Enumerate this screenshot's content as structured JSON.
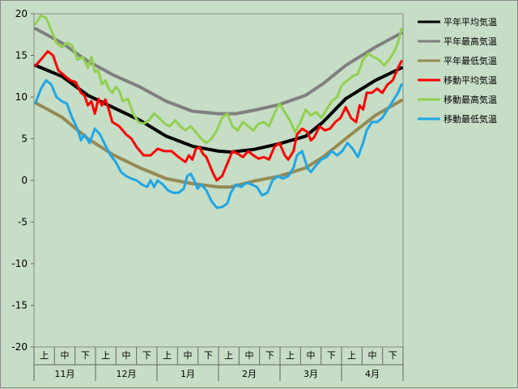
{
  "chart_data": {
    "type": "line",
    "title": "",
    "xlabel": "",
    "ylabel": "",
    "ylim": [
      -20,
      20
    ],
    "yticks": [
      20,
      15,
      10,
      5,
      0,
      -5,
      -10,
      -15,
      -20
    ],
    "months": [
      "11月",
      "12月",
      "1月",
      "2月",
      "3月",
      "4月"
    ],
    "periods": [
      "上",
      "中",
      "下"
    ],
    "n_points": 180,
    "series": [
      {
        "name": "平年平均気温",
        "color": "#000000",
        "width": 4,
        "kp": [
          [
            0,
            13.8
          ],
          [
            15,
            12.5
          ],
          [
            30,
            10.2
          ],
          [
            45,
            8.7
          ],
          [
            60,
            7.2
          ],
          [
            75,
            5.3
          ],
          [
            90,
            4.1
          ],
          [
            105,
            3.5
          ],
          [
            112,
            3.4
          ],
          [
            125,
            3.7
          ],
          [
            140,
            4.4
          ],
          [
            155,
            5.3
          ],
          [
            165,
            7.0
          ],
          [
            178,
            9.8
          ],
          [
            195,
            12.0
          ],
          [
            210,
            13.5
          ]
        ]
      },
      {
        "name": "平年最高気温",
        "color": "#808080",
        "width": 4,
        "kp": [
          [
            0,
            18.2
          ],
          [
            15,
            16.5
          ],
          [
            30,
            14.3
          ],
          [
            45,
            12.6
          ],
          [
            60,
            11.2
          ],
          [
            75,
            9.5
          ],
          [
            90,
            8.3
          ],
          [
            105,
            8.0
          ],
          [
            115,
            8.0
          ],
          [
            125,
            8.4
          ],
          [
            140,
            9.1
          ],
          [
            155,
            10.2
          ],
          [
            165,
            11.6
          ],
          [
            178,
            13.8
          ],
          [
            195,
            16.0
          ],
          [
            210,
            17.7
          ]
        ]
      },
      {
        "name": "平年最低気温",
        "color": "#948a54",
        "width": 4,
        "kp": [
          [
            0,
            9.3
          ],
          [
            15,
            7.6
          ],
          [
            30,
            5.0
          ],
          [
            45,
            3.0
          ],
          [
            60,
            1.5
          ],
          [
            75,
            0.2
          ],
          [
            90,
            -0.4
          ],
          [
            105,
            -0.8
          ],
          [
            112,
            -0.8
          ],
          [
            125,
            -0.1
          ],
          [
            140,
            0.5
          ],
          [
            155,
            1.5
          ],
          [
            165,
            2.8
          ],
          [
            178,
            5.0
          ],
          [
            195,
            7.8
          ],
          [
            210,
            9.6
          ]
        ]
      },
      {
        "name": "移動平均気温",
        "color": "#ff0000",
        "width": 3,
        "kp": [
          [
            0,
            13.8
          ],
          [
            3,
            14.5
          ],
          [
            7,
            15.5
          ],
          [
            10,
            15.0
          ],
          [
            13,
            13.2
          ],
          [
            17,
            12.5
          ],
          [
            20,
            12.0
          ],
          [
            23,
            11.8
          ],
          [
            26,
            10.5
          ],
          [
            28,
            10.2
          ],
          [
            30,
            9.0
          ],
          [
            32,
            9.5
          ],
          [
            34,
            8.0
          ],
          [
            36,
            9.8
          ],
          [
            38,
            9.0
          ],
          [
            40,
            9.7
          ],
          [
            42,
            8.5
          ],
          [
            44,
            7.0
          ],
          [
            48,
            6.5
          ],
          [
            52,
            5.5
          ],
          [
            55,
            5.0
          ],
          [
            58,
            4.0
          ],
          [
            62,
            3.0
          ],
          [
            66,
            3.0
          ],
          [
            70,
            3.8
          ],
          [
            74,
            3.5
          ],
          [
            78,
            3.5
          ],
          [
            82,
            2.8
          ],
          [
            86,
            2.2
          ],
          [
            88,
            3.0
          ],
          [
            90,
            2.5
          ],
          [
            92,
            3.8
          ],
          [
            94,
            4.0
          ],
          [
            96,
            3.2
          ],
          [
            98,
            2.8
          ],
          [
            100,
            1.8
          ],
          [
            102,
            0.8
          ],
          [
            104,
            0.0
          ],
          [
            107,
            0.5
          ],
          [
            110,
            2.0
          ],
          [
            113,
            3.5
          ],
          [
            116,
            3.2
          ],
          [
            119,
            2.8
          ],
          [
            122,
            3.5
          ],
          [
            125,
            3.0
          ],
          [
            128,
            2.6
          ],
          [
            131,
            2.8
          ],
          [
            134,
            2.5
          ],
          [
            137,
            4.0
          ],
          [
            140,
            4.5
          ],
          [
            143,
            3.0
          ],
          [
            145,
            2.5
          ],
          [
            148,
            3.5
          ],
          [
            150,
            5.5
          ],
          [
            153,
            6.2
          ],
          [
            156,
            5.8
          ],
          [
            158,
            4.8
          ],
          [
            160,
            5.2
          ],
          [
            163,
            6.5
          ],
          [
            166,
            6.0
          ],
          [
            169,
            6.2
          ],
          [
            172,
            7.0
          ],
          [
            175,
            7.5
          ],
          [
            178,
            8.8
          ],
          [
            181,
            7.5
          ],
          [
            184,
            7.0
          ],
          [
            186,
            9.0
          ],
          [
            188,
            8.5
          ],
          [
            190,
            10.5
          ],
          [
            193,
            10.5
          ],
          [
            196,
            11.0
          ],
          [
            199,
            10.5
          ],
          [
            202,
            11.5
          ],
          [
            205,
            12.0
          ],
          [
            208,
            13.5
          ],
          [
            210,
            14.3
          ]
        ]
      },
      {
        "name": "移動最高気温",
        "color": "#92d050",
        "width": 3,
        "kp": [
          [
            0,
            18.8
          ],
          [
            3,
            19.8
          ],
          [
            6,
            19.5
          ],
          [
            9,
            18.0
          ],
          [
            12,
            16.5
          ],
          [
            15,
            16.0
          ],
          [
            18,
            16.5
          ],
          [
            21,
            16.2
          ],
          [
            24,
            14.5
          ],
          [
            27,
            14.8
          ],
          [
            30,
            13.5
          ],
          [
            32,
            14.8
          ],
          [
            34,
            13.0
          ],
          [
            36,
            13.2
          ],
          [
            38,
            11.5
          ],
          [
            40,
            12.0
          ],
          [
            42,
            11.0
          ],
          [
            44,
            10.5
          ],
          [
            46,
            11.2
          ],
          [
            48,
            10.8
          ],
          [
            50,
            9.5
          ],
          [
            53,
            9.8
          ],
          [
            56,
            8.0
          ],
          [
            59,
            7.0
          ],
          [
            62,
            6.8
          ],
          [
            65,
            7.2
          ],
          [
            68,
            8.0
          ],
          [
            71,
            7.5
          ],
          [
            74,
            6.8
          ],
          [
            77,
            6.5
          ],
          [
            80,
            7.2
          ],
          [
            83,
            6.5
          ],
          [
            86,
            6.0
          ],
          [
            89,
            6.5
          ],
          [
            92,
            5.8
          ],
          [
            95,
            5.0
          ],
          [
            98,
            4.5
          ],
          [
            101,
            5.0
          ],
          [
            104,
            6.0
          ],
          [
            107,
            7.5
          ],
          [
            110,
            8.0
          ],
          [
            113,
            6.5
          ],
          [
            116,
            6.0
          ],
          [
            119,
            7.0
          ],
          [
            122,
            6.5
          ],
          [
            125,
            6.0
          ],
          [
            128,
            6.8
          ],
          [
            131,
            7.0
          ],
          [
            134,
            6.5
          ],
          [
            137,
            8.0
          ],
          [
            140,
            9.2
          ],
          [
            143,
            8.2
          ],
          [
            146,
            7.2
          ],
          [
            149,
            5.8
          ],
          [
            152,
            7.0
          ],
          [
            155,
            8.5
          ],
          [
            158,
            7.8
          ],
          [
            161,
            8.2
          ],
          [
            164,
            7.5
          ],
          [
            167,
            8.5
          ],
          [
            170,
            9.5
          ],
          [
            173,
            10.0
          ],
          [
            176,
            11.5
          ],
          [
            179,
            12.0
          ],
          [
            182,
            12.5
          ],
          [
            185,
            12.8
          ],
          [
            188,
            14.5
          ],
          [
            191,
            15.2
          ],
          [
            194,
            14.8
          ],
          [
            197,
            14.5
          ],
          [
            200,
            13.8
          ],
          [
            203,
            14.5
          ],
          [
            206,
            15.5
          ],
          [
            208,
            16.5
          ],
          [
            210,
            18.2
          ]
        ]
      },
      {
        "name": "移動最低気温",
        "color": "#1fa6e6",
        "width": 3,
        "kp": [
          [
            0,
            9.3
          ],
          [
            3,
            11.0
          ],
          [
            6,
            12.0
          ],
          [
            9,
            11.5
          ],
          [
            12,
            10.0
          ],
          [
            15,
            9.5
          ],
          [
            18,
            9.2
          ],
          [
            21,
            7.5
          ],
          [
            24,
            6.2
          ],
          [
            26,
            4.8
          ],
          [
            28,
            5.5
          ],
          [
            31,
            4.5
          ],
          [
            34,
            6.2
          ],
          [
            37,
            5.5
          ],
          [
            40,
            4.2
          ],
          [
            43,
            3.0
          ],
          [
            46,
            2.2
          ],
          [
            49,
            1.0
          ],
          [
            52,
            0.5
          ],
          [
            55,
            0.2
          ],
          [
            58,
            0.0
          ],
          [
            61,
            -0.5
          ],
          [
            64,
            -0.8
          ],
          [
            66,
            0.0
          ],
          [
            68,
            -0.8
          ],
          [
            70,
            0.0
          ],
          [
            73,
            -0.5
          ],
          [
            76,
            -1.2
          ],
          [
            79,
            -1.5
          ],
          [
            82,
            -1.5
          ],
          [
            85,
            -1.0
          ],
          [
            87,
            0.5
          ],
          [
            89,
            0.8
          ],
          [
            91,
            0.0
          ],
          [
            93,
            -1.0
          ],
          [
            95,
            -0.5
          ],
          [
            98,
            -1.2
          ],
          [
            101,
            -2.5
          ],
          [
            104,
            -3.3
          ],
          [
            107,
            -3.2
          ],
          [
            110,
            -2.8
          ],
          [
            112,
            -1.5
          ],
          [
            115,
            -0.5
          ],
          [
            118,
            -0.8
          ],
          [
            121,
            -0.3
          ],
          [
            124,
            -0.5
          ],
          [
            127,
            -0.8
          ],
          [
            130,
            -1.8
          ],
          [
            133,
            -1.5
          ],
          [
            136,
            0.0
          ],
          [
            139,
            0.5
          ],
          [
            142,
            0.2
          ],
          [
            145,
            0.5
          ],
          [
            148,
            1.5
          ],
          [
            150,
            3.0
          ],
          [
            153,
            3.5
          ],
          [
            156,
            1.5
          ],
          [
            158,
            1.0
          ],
          [
            161,
            1.8
          ],
          [
            164,
            2.5
          ],
          [
            167,
            2.8
          ],
          [
            170,
            3.5
          ],
          [
            173,
            3.0
          ],
          [
            176,
            3.5
          ],
          [
            179,
            4.5
          ],
          [
            182,
            3.8
          ],
          [
            185,
            2.8
          ],
          [
            188,
            4.5
          ],
          [
            190,
            6.0
          ],
          [
            193,
            7.0
          ],
          [
            196,
            7.0
          ],
          [
            199,
            7.5
          ],
          [
            202,
            8.5
          ],
          [
            205,
            9.5
          ],
          [
            208,
            10.5
          ],
          [
            210,
            11.5
          ]
        ]
      }
    ],
    "legend_position": "top-right"
  }
}
